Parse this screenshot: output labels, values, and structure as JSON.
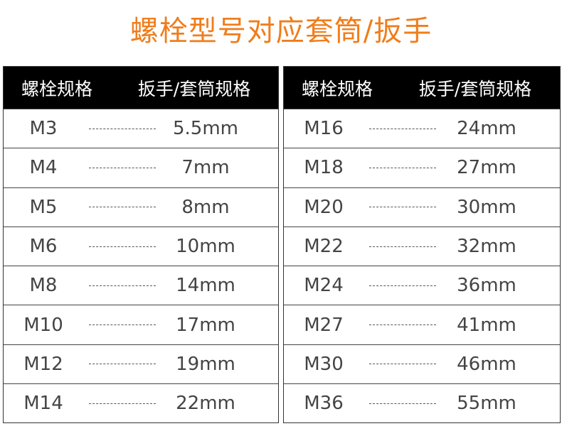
{
  "title": "螺栓型号对应套筒/扳手",
  "headers": {
    "bolt": "螺栓规格",
    "wrench": "扳手/套筒规格"
  },
  "left": [
    [
      "M3",
      "5.5mm"
    ],
    [
      "M4",
      "7mm"
    ],
    [
      "M5",
      "8mm"
    ],
    [
      "M6",
      "10mm"
    ],
    [
      "M8",
      "14mm"
    ],
    [
      "M10",
      "17mm"
    ],
    [
      "M12",
      "19mm"
    ],
    [
      "M14",
      "22mm"
    ]
  ],
  "right": [
    [
      "M16",
      "24mm"
    ],
    [
      "M18",
      "27mm"
    ],
    [
      "M20",
      "30mm"
    ],
    [
      "M22",
      "32mm"
    ],
    [
      "M24",
      "36mm"
    ],
    [
      "M27",
      "41mm"
    ],
    [
      "M30",
      "46mm"
    ],
    [
      "M36",
      "55mm"
    ]
  ]
}
